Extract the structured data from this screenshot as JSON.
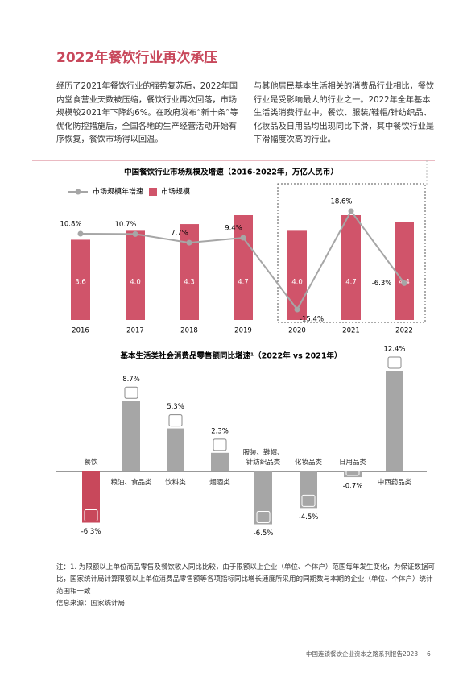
{
  "header": {
    "title": "2022年餐饮行业再次承压"
  },
  "paragraphs": [
    "经历了2021年餐饮行业的强势复苏后，2022年国内堂食营业天数被压缩，餐饮行业再次回落，市场规模较2021年下降约6%。在政府发布“新十条”等优化防控措施后，全国各地的生产经营活动开始有序恢复，餐饮市场得以回温。",
    "与其他居民基本生活相关的消费品行业相比，餐饮行业是受影响最大的行业之一。2022年全年基本生活类消费行业中，餐饮、服装/鞋帽/针纺织品、化妆品及日用品均出现同比下滑，其中餐饮行业是下滑幅度次高的行业。"
  ],
  "chart_data": [
    {
      "type": "combo",
      "title": "中国餐饮行业市场规模及增速（2016-2022年，万亿人民币）",
      "categories": [
        "2016",
        "2017",
        "2018",
        "2019",
        "2020",
        "2021",
        "2022"
      ],
      "series": [
        {
          "name": "市场规模年增速",
          "type": "line",
          "color": "#a6a6a6",
          "values": [
            10.8,
            10.7,
            7.7,
            9.4,
            -15.4,
            18.6,
            -6.3
          ],
          "value_labels": [
            "10.8%",
            "10.7%",
            "7.7%",
            "9.4%",
            "-15.4%",
            "18.6%",
            "-6.3%"
          ]
        },
        {
          "name": "市场规模",
          "type": "bar",
          "color": "#d0546a",
          "values": [
            3.6,
            4.0,
            4.3,
            4.7,
            4.0,
            4.7,
            4.4
          ],
          "value_labels": [
            "3.6",
            "4.0",
            "4.3",
            "4.7",
            "4.0",
            "4.7",
            "4.4"
          ]
        }
      ]
    },
    {
      "type": "bar",
      "title": "基本生活类社会消费品零售额同比增速¹（2022年 vs 2021年）",
      "categories": [
        "餐饮",
        "粮油、食品类",
        "饮料类",
        "烟酒类",
        "服装、鞋帽、针纺织品类",
        "化妆品类",
        "日用品类",
        "中西药品类"
      ],
      "values": [
        -6.3,
        8.7,
        5.3,
        2.3,
        -6.5,
        -4.5,
        -0.7,
        12.4
      ],
      "value_labels": [
        "-6.3%",
        "8.7%",
        "5.3%",
        "2.3%",
        "-6.5%",
        "-4.5%",
        "-0.7%",
        "12.4%"
      ],
      "colors": [
        "#c8485b",
        "#a6a6a6",
        "#a6a6a6",
        "#a6a6a6",
        "#a6a6a6",
        "#a6a6a6",
        "#a6a6a6",
        "#a6a6a6"
      ]
    }
  ],
  "notes": {
    "footnote": "注：1. 为限额以上单位商品零售及餐饮收入同比比较，由于限额以上企业（单位、个体户）范围每年发生变化，为保证数据可比，国家统计局计算限额以上单位消费品零售额等各项指标同比增长速度所采用的同期数与本期的企业（单位、个体户）统计范围相一致",
    "source": "信息来源：国家统计局"
  },
  "footer": {
    "report": "中国连锁餐饮企业资本之路系列报告2023",
    "page": "6"
  }
}
